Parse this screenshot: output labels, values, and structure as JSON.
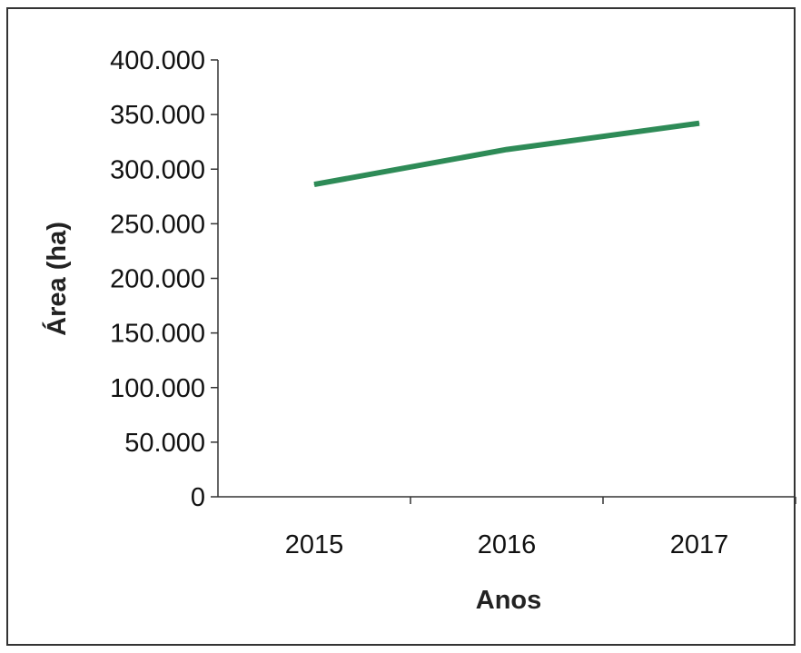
{
  "chart_data": {
    "type": "line",
    "title": "",
    "xlabel": "Anos",
    "ylabel": "Área (ha)",
    "categories": [
      "2015",
      "2016",
      "2017"
    ],
    "series": [
      {
        "values": [
          286000,
          318000,
          342000
        ],
        "color": "#2e8b57"
      }
    ],
    "ylim": [
      0,
      400000
    ],
    "yticks": [
      0,
      50000,
      100000,
      150000,
      200000,
      250000,
      300000,
      350000,
      400000
    ],
    "ytick_labels": [
      "0",
      "50.000",
      "100.000",
      "150.000",
      "200.000",
      "250.000",
      "300.000",
      "350.000",
      "400.000"
    ],
    "grid": false,
    "legend": "none"
  }
}
